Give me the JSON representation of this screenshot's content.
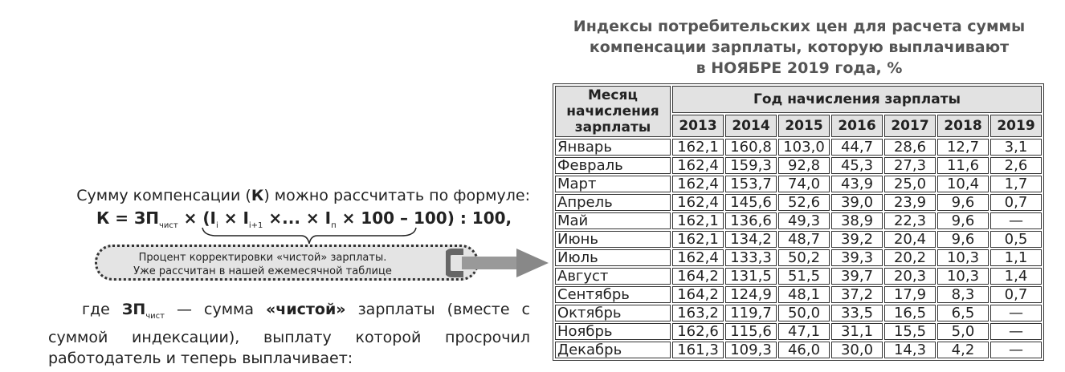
{
  "title_lines": [
    "Индексы потребительских цен для расчета суммы",
    "компенсации зарплаты, которую выплачивают",
    "в НОЯБРЕ 2019 года, %"
  ],
  "table": {
    "month_header": "Месяц начисления зарплаты",
    "year_header": "Год начисления зарплаты",
    "years": [
      "2013",
      "2014",
      "2015",
      "2016",
      "2017",
      "2018",
      "2019"
    ],
    "rows": [
      {
        "month": "Январь",
        "values": [
          "162,1",
          "160,8",
          "103,0",
          "44,7",
          "28,6",
          "12,7",
          "3,1"
        ]
      },
      {
        "month": "Февраль",
        "values": [
          "162,4",
          "159,3",
          "92,8",
          "45,3",
          "27,3",
          "11,6",
          "2,6"
        ]
      },
      {
        "month": "Март",
        "values": [
          "162,4",
          "153,7",
          "74,0",
          "43,9",
          "25,0",
          "10,4",
          "1,7"
        ]
      },
      {
        "month": "Апрель",
        "values": [
          "162,4",
          "145,6",
          "52,6",
          "39,0",
          "23,9",
          "9,6",
          "0,7"
        ]
      },
      {
        "month": "Май",
        "values": [
          "162,1",
          "136,6",
          "49,3",
          "38,9",
          "22,3",
          "9,6",
          "—"
        ]
      },
      {
        "month": "Июнь",
        "values": [
          "162,1",
          "134,2",
          "48,7",
          "39,2",
          "20,4",
          "9,6",
          "0,5"
        ]
      },
      {
        "month": "Июль",
        "values": [
          "162,4",
          "133,3",
          "50,2",
          "39,3",
          "20,2",
          "10,3",
          "1,1"
        ]
      },
      {
        "month": "Август",
        "values": [
          "164,2",
          "131,5",
          "51,5",
          "39,7",
          "20,3",
          "10,3",
          "1,4"
        ]
      },
      {
        "month": "Сентябрь",
        "values": [
          "164,2",
          "124,9",
          "48,1",
          "37,2",
          "17,9",
          "8,3",
          "0,7"
        ]
      },
      {
        "month": "Октябрь",
        "values": [
          "163,2",
          "119,7",
          "50,0",
          "33,5",
          "16,5",
          "6,5",
          "—"
        ]
      },
      {
        "month": "Ноябрь",
        "values": [
          "162,6",
          "115,6",
          "47,1",
          "31,1",
          "15,5",
          "5,0",
          "—"
        ]
      },
      {
        "month": "Декабрь",
        "values": [
          "161,3",
          "109,3",
          "46,0",
          "30,0",
          "14,3",
          "4,2",
          "—"
        ]
      }
    ]
  },
  "text": {
    "line1_a": "Сумму компенсации (",
    "line1_k": "К",
    "line1_b": ") можно рассчитать по формуле:",
    "formula": {
      "k": "К = ЗП",
      "sub_chist": "чист",
      "x1": " × (I",
      "sub_i": "i",
      "x2": " × I",
      "sub_i1": "i+1",
      "x3": " ×... × I",
      "sub_n": "п",
      "x4": " × 100 – 100) : 100,"
    },
    "pill_line1": "Процент корректировки «чистой» зарплаты.",
    "pill_line2": "Уже рассчитан в нашей ежемесячной таблице",
    "para_a": "где ",
    "para_zp": "ЗП",
    "para_sub": "чист",
    "para_b": " — сумма ",
    "para_bold": "«чистой»",
    "para_c": " зарплаты (вместе с суммой индексации), выплату которой просрочил работодатель и теперь выплачивает:"
  }
}
